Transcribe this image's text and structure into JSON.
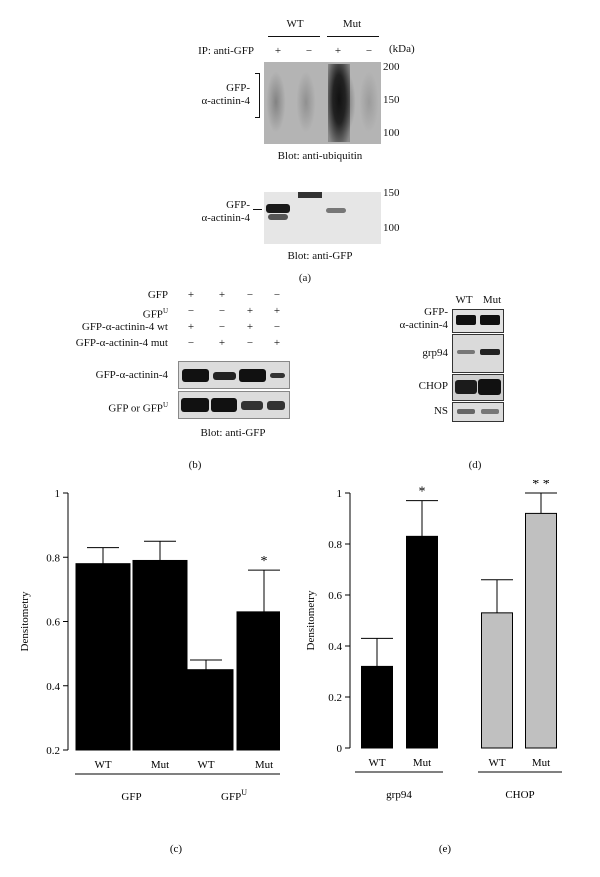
{
  "panel_a": {
    "wt_label": "WT",
    "mut_label": "Mut",
    "ip_label": "IP: anti-GFP",
    "ip_signs": [
      "+",
      "−",
      "+",
      "−"
    ],
    "kda_label": "(kDa)",
    "band_label": "GFP-\nα-actinin-4",
    "ubiq_markers": [
      "200",
      "150",
      "100"
    ],
    "ubiq_blot_label": "Blot: anti-ubiquitin",
    "gfp_markers": [
      "150",
      "100"
    ],
    "gfp_blot_label": "Blot: anti-GFP",
    "letter": "(a)"
  },
  "panel_b": {
    "rows": [
      {
        "label": "GFP",
        "signs": [
          "+",
          "+",
          "−",
          "−"
        ]
      },
      {
        "label": "GFPU",
        "signs": [
          "−",
          "−",
          "+",
          "+"
        ]
      },
      {
        "label": "GFP-α-actinin-4 wt",
        "signs": [
          "+",
          "−",
          "+",
          "−"
        ]
      },
      {
        "label": "GFP-α-actinin-4 mut",
        "signs": [
          "−",
          "+",
          "−",
          "+"
        ]
      }
    ],
    "band1_label": "GFP-α-actinin-4",
    "band2_label": "GFP or GFPU",
    "blot_label": "Blot: anti-GFP",
    "letter": "(b)"
  },
  "panel_d": {
    "wt_label": "WT",
    "mut_label": "Mut",
    "rows": [
      "GFP-\nα-actinin-4",
      "grp94",
      "CHOP",
      "NS"
    ],
    "letter": "(d)"
  },
  "chart_data": [
    {
      "type": "bar",
      "panel": "(c)",
      "ylabel": "Densitometry",
      "ylim": [
        0.2,
        1.0
      ],
      "yticks": [
        "0.2",
        "0.4",
        "0.6",
        "0.8",
        "1"
      ],
      "groups": [
        "GFP",
        "GFPU"
      ],
      "categories": [
        "WT",
        "Mut",
        "WT",
        "Mut"
      ],
      "values": [
        0.78,
        0.79,
        0.45,
        0.63
      ],
      "errors": [
        0.05,
        0.06,
        0.03,
        0.13
      ],
      "significance": [
        "",
        "",
        "",
        "*"
      ],
      "colors": [
        "#000000",
        "#000000",
        "#000000",
        "#000000"
      ]
    },
    {
      "type": "bar",
      "panel": "(e)",
      "ylabel": "Densitometry",
      "ylim": [
        0,
        1.0
      ],
      "yticks": [
        "0",
        "0.2",
        "0.4",
        "0.6",
        "0.8",
        "1"
      ],
      "groups": [
        "grp94",
        "CHOP"
      ],
      "categories": [
        "WT",
        "Mut",
        "WT",
        "Mut"
      ],
      "values": [
        0.32,
        0.83,
        0.53,
        0.92
      ],
      "errors": [
        0.11,
        0.14,
        0.13,
        0.08
      ],
      "significance": [
        "",
        "*",
        "",
        "**"
      ],
      "colors": [
        "#000000",
        "#000000",
        "#c0c0c0",
        "#c0c0c0"
      ]
    }
  ]
}
